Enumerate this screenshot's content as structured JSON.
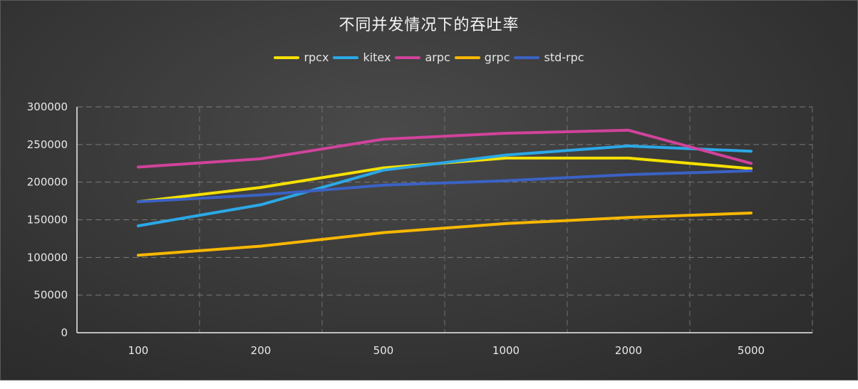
{
  "chart_data": {
    "type": "line",
    "title": "不同并发情况下的吞吐率",
    "xlabel": "",
    "ylabel": "",
    "categories": [
      "100",
      "200",
      "500",
      "1000",
      "2000",
      "5000"
    ],
    "ylim": [
      0,
      300000
    ],
    "yticks": [
      "0",
      "50000",
      "100000",
      "150000",
      "200000",
      "250000",
      "300000"
    ],
    "grid": true,
    "legend_position": "top-center",
    "series": [
      {
        "name": "rpcx",
        "color": "#f5e000",
        "values": [
          174000,
          193000,
          219000,
          232000,
          232000,
          218000
        ]
      },
      {
        "name": "kitex",
        "color": "#2ba8e6",
        "values": [
          142000,
          170000,
          216000,
          236000,
          248000,
          241000
        ]
      },
      {
        "name": "arpc",
        "color": "#d0439b",
        "values": [
          220000,
          231000,
          257000,
          265000,
          269000,
          225000
        ]
      },
      {
        "name": "grpc",
        "color": "#f9b700",
        "values": [
          103000,
          115000,
          133000,
          145000,
          153000,
          159000
        ]
      },
      {
        "name": "std-rpc",
        "color": "#3b62c4",
        "values": [
          174000,
          183000,
          196000,
          202000,
          210000,
          215000
        ]
      }
    ]
  }
}
